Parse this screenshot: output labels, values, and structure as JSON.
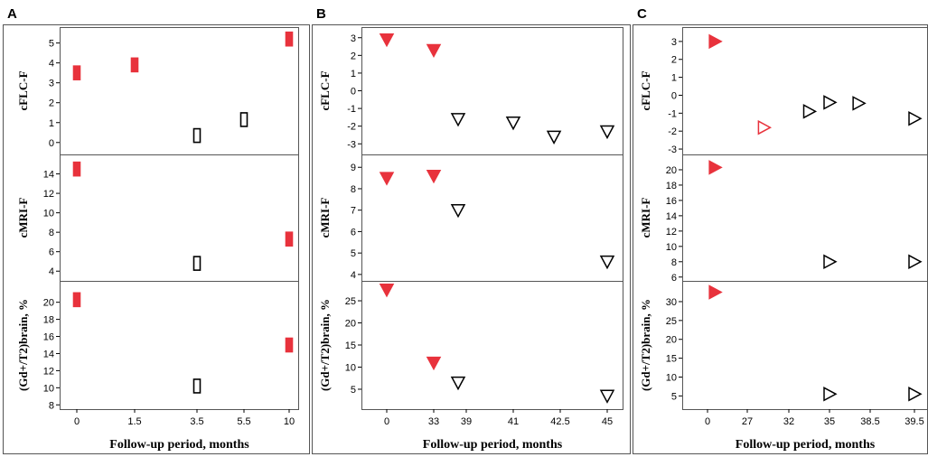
{
  "figure": {
    "colors": {
      "filled": "#e8323c",
      "frame": "#555555"
    }
  },
  "chart_data": [
    {
      "type": "scatter",
      "panel": "A",
      "xlabel": "Follow-up period, months",
      "x_ticks": [
        "0",
        "1.5",
        "3.5",
        "5.5",
        "10"
      ],
      "marker": "bar",
      "subplots": [
        {
          "ylabel": "cFLC-F",
          "ylim": [
            -0.6,
            5.8
          ],
          "yticks": [
            "0",
            "1",
            "2",
            "3",
            "4",
            "5"
          ],
          "points": [
            {
              "x": "0",
              "y": 3.5,
              "filled": true
            },
            {
              "x": "1.5",
              "y": 3.9,
              "filled": true
            },
            {
              "x": "3.5",
              "y": 0.35,
              "filled": false
            },
            {
              "x": "5.5",
              "y": 1.15,
              "filled": false
            },
            {
              "x": "10",
              "y": 5.2,
              "filled": true
            }
          ]
        },
        {
          "ylabel": "cMRI-F",
          "ylim": [
            3.0,
            16.0
          ],
          "yticks": [
            "4",
            "6",
            "8",
            "10",
            "12",
            "14"
          ],
          "points": [
            {
              "x": "0",
              "y": 14.5,
              "filled": true
            },
            {
              "x": "3.5",
              "y": 4.8,
              "filled": false
            },
            {
              "x": "10",
              "y": 7.3,
              "filled": true
            }
          ]
        },
        {
          "ylabel": "(Gd+/T2)brain, %",
          "ylim": [
            7.5,
            22.5
          ],
          "yticks": [
            "8",
            "10",
            "12",
            "14",
            "16",
            "18",
            "20"
          ],
          "points": [
            {
              "x": "0",
              "y": 20.3,
              "filled": true
            },
            {
              "x": "3.5",
              "y": 10.2,
              "filled": false
            },
            {
              "x": "10",
              "y": 15.0,
              "filled": true
            }
          ]
        }
      ]
    },
    {
      "type": "scatter",
      "panel": "B",
      "xlabel": "Follow-up period, months",
      "x_ticks": [
        "0",
        "33",
        "39",
        "41",
        "42.5",
        "45"
      ],
      "marker": "triangle-down",
      "subplots": [
        {
          "ylabel": "cFLC-F",
          "ylim": [
            -3.6,
            3.6
          ],
          "yticks": [
            "-3",
            "-2",
            "-1",
            "0",
            "1",
            "2",
            "3"
          ],
          "points": [
            {
              "x": "0",
              "y": 2.9,
              "filled": true
            },
            {
              "x": "33",
              "y": 2.3,
              "filled": true
            },
            {
              "x": 37.5,
              "y": -1.6,
              "filled": false
            },
            {
              "x": "41",
              "y": -1.8,
              "filled": false
            },
            {
              "x": 42.3,
              "y": -2.6,
              "filled": false
            },
            {
              "x": "45",
              "y": -2.3,
              "filled": false
            }
          ]
        },
        {
          "ylabel": "cMRI-F",
          "ylim": [
            3.7,
            9.6
          ],
          "yticks": [
            "4",
            "5",
            "6",
            "7",
            "8",
            "9"
          ],
          "points": [
            {
              "x": "0",
              "y": 8.5,
              "filled": true
            },
            {
              "x": "33",
              "y": 8.6,
              "filled": true
            },
            {
              "x": 37.5,
              "y": 7.0,
              "filled": false
            },
            {
              "x": "45",
              "y": 4.6,
              "filled": false
            }
          ]
        },
        {
          "ylabel": "(Gd+/T2)brain, %",
          "ylim": [
            0.5,
            29.5
          ],
          "yticks": [
            "5",
            "10",
            "15",
            "20",
            "25"
          ],
          "points": [
            {
              "x": "0",
              "y": 27.5,
              "filled": true
            },
            {
              "x": "33",
              "y": 11.0,
              "filled": true
            },
            {
              "x": 37.5,
              "y": 6.5,
              "filled": false
            },
            {
              "x": "45",
              "y": 3.5,
              "filled": false
            }
          ]
        }
      ]
    },
    {
      "type": "scatter",
      "panel": "C",
      "xlabel": "Follow-up period, months",
      "x_ticks": [
        "0",
        "27",
        "32",
        "35",
        "38.5",
        "39.5"
      ],
      "marker": "triangle-right",
      "subplots": [
        {
          "ylabel": "cFLC-F",
          "ylim": [
            -3.3,
            3.8
          ],
          "yticks": [
            "-3",
            "-2",
            "-1",
            "0",
            "1",
            "2",
            "3"
          ],
          "points": [
            {
              "x": 5.0,
              "y": 3.0,
              "filled": true,
              "color": "#e8323c"
            },
            {
              "x": 29.0,
              "y": -1.8,
              "filled": false,
              "color": "#e8323c"
            },
            {
              "x": 33.5,
              "y": -0.9,
              "filled": false,
              "color": "#000000"
            },
            {
              "x": "35",
              "y": -0.4,
              "filled": false,
              "color": "#000000"
            },
            {
              "x": 37.5,
              "y": -0.45,
              "filled": false,
              "color": "#000000"
            },
            {
              "x": "39.5",
              "y": -1.3,
              "filled": false,
              "color": "#000000"
            }
          ]
        },
        {
          "ylabel": "cMRI-F",
          "ylim": [
            5.5,
            22.0
          ],
          "yticks": [
            "6",
            "8",
            "10",
            "12",
            "14",
            "16",
            "18",
            "20"
          ],
          "points": [
            {
              "x": 5.0,
              "y": 20.3,
              "filled": true,
              "color": "#e8323c"
            },
            {
              "x": "35",
              "y": 8.0,
              "filled": false,
              "color": "#000000"
            },
            {
              "x": "39.5",
              "y": 8.0,
              "filled": false,
              "color": "#000000"
            }
          ]
        },
        {
          "ylabel": "(Gd+/T2)brain, %",
          "ylim": [
            1.5,
            35.5
          ],
          "yticks": [
            "5",
            "10",
            "15",
            "20",
            "25",
            "30"
          ],
          "points": [
            {
              "x": 5.0,
              "y": 32.5,
              "filled": true,
              "color": "#e8323c"
            },
            {
              "x": "35",
              "y": 5.5,
              "filled": false,
              "color": "#000000"
            },
            {
              "x": "39.5",
              "y": 5.5,
              "filled": false,
              "color": "#000000"
            }
          ]
        }
      ]
    }
  ]
}
